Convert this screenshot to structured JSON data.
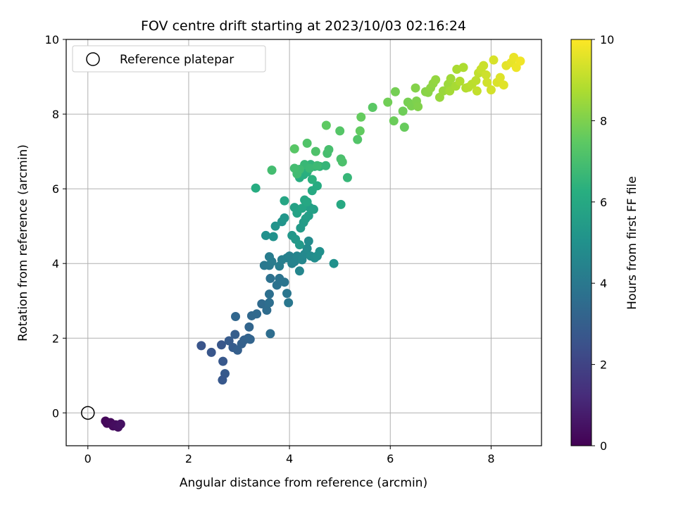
{
  "chart_data": {
    "type": "scatter",
    "title": "FOV centre drift starting at 2023/10/03 02:16:24",
    "xlabel": "Angular distance from reference (arcmin)",
    "ylabel": "Rotation from reference (arcmin)",
    "xlim": [
      -0.43,
      9.0
    ],
    "ylim": [
      -0.88,
      10.0
    ],
    "xticks": [
      "0",
      "2",
      "4",
      "6",
      "8"
    ],
    "yticks": [
      "0",
      "2",
      "4",
      "6",
      "8",
      "10"
    ],
    "grid": true,
    "legend": {
      "placement": "top-left",
      "entries": [
        "Reference platepar"
      ]
    },
    "reference_point": {
      "x": 0,
      "y": 0
    },
    "colorbar": {
      "label": "Hours from first FF file",
      "colormap": "viridis",
      "range": [
        0,
        10
      ],
      "ticks": [
        "0",
        "2",
        "4",
        "6",
        "8",
        "10"
      ]
    },
    "series": [
      {
        "points": [
          [
            0.35,
            -0.22,
            0.15
          ],
          [
            0.38,
            -0.28,
            0.2
          ],
          [
            0.45,
            -0.26,
            0.25
          ],
          [
            0.5,
            -0.35,
            0.3
          ],
          [
            0.55,
            -0.32,
            0.35
          ],
          [
            0.6,
            -0.38,
            0.4
          ],
          [
            0.65,
            -0.3,
            0.45
          ],
          [
            2.25,
            1.8,
            2.6
          ],
          [
            2.45,
            1.62,
            2.65
          ],
          [
            2.65,
            1.82,
            2.7
          ],
          [
            2.68,
            1.38,
            2.75
          ],
          [
            2.72,
            1.05,
            2.8
          ],
          [
            2.67,
            0.88,
            2.72
          ],
          [
            2.8,
            1.93,
            2.85
          ],
          [
            2.88,
            1.75,
            2.9
          ],
          [
            2.92,
            2.1,
            2.95
          ],
          [
            2.97,
            1.68,
            3.0
          ],
          [
            3.05,
            1.85,
            3.05
          ],
          [
            3.1,
            1.95,
            3.1
          ],
          [
            3.18,
            2.0,
            3.15
          ],
          [
            3.22,
            1.97,
            3.2
          ],
          [
            3.2,
            2.3,
            3.25
          ],
          [
            2.93,
            2.58,
            3.3
          ],
          [
            3.25,
            2.6,
            3.35
          ],
          [
            3.35,
            2.65,
            3.4
          ],
          [
            3.45,
            2.92,
            3.45
          ],
          [
            3.55,
            2.75,
            3.5
          ],
          [
            3.62,
            2.12,
            3.55
          ],
          [
            3.6,
            2.95,
            3.6
          ],
          [
            3.6,
            3.18,
            3.65
          ],
          [
            3.62,
            3.6,
            3.7
          ],
          [
            3.75,
            3.42,
            3.75
          ],
          [
            3.8,
            3.6,
            3.8
          ],
          [
            3.9,
            3.5,
            3.85
          ],
          [
            3.95,
            3.2,
            3.9
          ],
          [
            3.98,
            2.95,
            3.95
          ],
          [
            3.5,
            3.95,
            4.0
          ],
          [
            3.6,
            3.95,
            4.05
          ],
          [
            3.65,
            4.05,
            4.1
          ],
          [
            3.6,
            4.18,
            4.15
          ],
          [
            3.8,
            3.93,
            4.2
          ],
          [
            3.85,
            4.1,
            4.25
          ],
          [
            3.95,
            4.15,
            4.3
          ],
          [
            4.0,
            4.2,
            4.35
          ],
          [
            4.05,
            4.0,
            4.4
          ],
          [
            4.1,
            4.05,
            4.45
          ],
          [
            4.15,
            4.2,
            4.5
          ],
          [
            4.2,
            3.8,
            4.55
          ],
          [
            4.25,
            4.1,
            4.6
          ],
          [
            4.3,
            4.25,
            4.65
          ],
          [
            4.35,
            4.4,
            4.7
          ],
          [
            4.38,
            4.6,
            4.75
          ],
          [
            4.42,
            4.2,
            4.8
          ],
          [
            4.5,
            4.15,
            4.85
          ],
          [
            4.55,
            4.2,
            4.9
          ],
          [
            4.6,
            4.32,
            4.95
          ],
          [
            4.88,
            4.0,
            5.0
          ],
          [
            3.53,
            4.75,
            5.0
          ],
          [
            3.68,
            4.72,
            5.05
          ],
          [
            3.72,
            5.0,
            5.1
          ],
          [
            3.85,
            5.12,
            5.15
          ],
          [
            3.9,
            5.22,
            5.2
          ],
          [
            4.05,
            4.75,
            5.25
          ],
          [
            4.12,
            4.65,
            5.3
          ],
          [
            4.2,
            4.5,
            5.35
          ],
          [
            4.22,
            4.95,
            5.4
          ],
          [
            4.28,
            5.1,
            5.45
          ],
          [
            4.32,
            5.2,
            5.5
          ],
          [
            4.38,
            5.28,
            5.55
          ],
          [
            4.4,
            5.5,
            5.6
          ],
          [
            4.48,
            5.45,
            5.65
          ],
          [
            4.1,
            5.5,
            5.7
          ],
          [
            4.15,
            5.35,
            5.75
          ],
          [
            4.25,
            5.48,
            5.8
          ],
          [
            3.9,
            5.68,
            5.85
          ],
          [
            4.3,
            5.7,
            5.9
          ],
          [
            4.35,
            5.65,
            5.95
          ],
          [
            5.02,
            5.58,
            6.0
          ],
          [
            4.45,
            5.95,
            6.05
          ],
          [
            4.55,
            6.08,
            6.1
          ],
          [
            3.33,
            6.02,
            6.15
          ],
          [
            4.2,
            6.3,
            6.2
          ],
          [
            4.28,
            6.38,
            6.25
          ],
          [
            4.35,
            6.45,
            6.3
          ],
          [
            4.45,
            6.25,
            6.35
          ],
          [
            4.5,
            6.6,
            6.4
          ],
          [
            4.6,
            6.6,
            6.45
          ],
          [
            4.42,
            6.65,
            6.5
          ],
          [
            4.72,
            6.62,
            6.55
          ],
          [
            5.15,
            6.3,
            6.6
          ],
          [
            4.3,
            6.65,
            6.65
          ],
          [
            4.4,
            6.55,
            6.7
          ],
          [
            4.55,
            6.62,
            6.75
          ],
          [
            4.2,
            6.52,
            6.8
          ],
          [
            4.15,
            6.4,
            6.85
          ],
          [
            4.1,
            6.55,
            6.9
          ],
          [
            3.65,
            6.5,
            6.9
          ],
          [
            4.75,
            6.95,
            6.95
          ],
          [
            4.78,
            7.05,
            7.0
          ],
          [
            5.02,
            6.8,
            7.05
          ],
          [
            5.05,
            6.72,
            7.1
          ],
          [
            4.52,
            7.0,
            7.15
          ],
          [
            4.35,
            7.22,
            7.2
          ],
          [
            5.35,
            7.32,
            7.25
          ],
          [
            5.0,
            7.55,
            7.3
          ],
          [
            4.1,
            7.07,
            7.35
          ],
          [
            5.65,
            8.18,
            7.4
          ],
          [
            4.73,
            7.7,
            7.5
          ],
          [
            5.4,
            7.55,
            7.55
          ],
          [
            5.42,
            7.92,
            7.6
          ],
          [
            6.28,
            7.65,
            7.65
          ],
          [
            6.07,
            7.82,
            7.7
          ],
          [
            6.25,
            8.08,
            7.75
          ],
          [
            5.95,
            8.32,
            7.8
          ],
          [
            6.1,
            8.6,
            7.85
          ],
          [
            6.35,
            8.32,
            7.9
          ],
          [
            6.42,
            8.22,
            7.95
          ],
          [
            6.52,
            8.35,
            8.0
          ],
          [
            6.55,
            8.2,
            8.05
          ],
          [
            6.5,
            8.7,
            8.1
          ],
          [
            6.7,
            8.6,
            8.15
          ],
          [
            6.75,
            8.58,
            8.2
          ],
          [
            6.8,
            8.7,
            8.25
          ],
          [
            6.85,
            8.82,
            8.3
          ],
          [
            6.9,
            8.92,
            8.35
          ],
          [
            6.98,
            8.45,
            8.4
          ],
          [
            7.05,
            8.62,
            8.45
          ],
          [
            7.15,
            8.8,
            8.5
          ],
          [
            7.2,
            8.95,
            8.55
          ],
          [
            7.18,
            8.62,
            8.6
          ],
          [
            7.3,
            8.75,
            8.65
          ],
          [
            7.32,
            9.2,
            8.7
          ],
          [
            7.45,
            9.25,
            8.75
          ],
          [
            7.38,
            8.88,
            8.8
          ],
          [
            7.5,
            8.7,
            8.85
          ],
          [
            7.55,
            8.72,
            8.9
          ],
          [
            7.62,
            8.8,
            8.95
          ],
          [
            7.7,
            8.9,
            9.0
          ],
          [
            7.75,
            9.1,
            9.05
          ],
          [
            7.72,
            8.62,
            9.1
          ],
          [
            7.8,
            9.2,
            9.15
          ],
          [
            7.85,
            9.3,
            9.2
          ],
          [
            7.9,
            9.05,
            9.25
          ],
          [
            7.92,
            8.85,
            9.3
          ],
          [
            8.0,
            8.65,
            9.35
          ],
          [
            8.05,
            9.45,
            9.4
          ],
          [
            8.12,
            8.85,
            9.45
          ],
          [
            8.18,
            8.98,
            9.5
          ],
          [
            8.25,
            8.78,
            9.55
          ],
          [
            8.3,
            9.3,
            9.6
          ],
          [
            8.4,
            9.38,
            9.65
          ],
          [
            8.45,
            9.52,
            9.7
          ],
          [
            8.5,
            9.25,
            9.75
          ],
          [
            8.58,
            9.42,
            9.8
          ]
        ]
      }
    ]
  }
}
